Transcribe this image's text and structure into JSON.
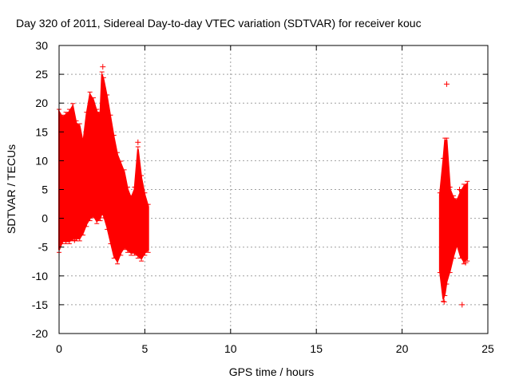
{
  "chart_data": {
    "type": "scatter",
    "title": "Day 320 of 2011, Sidereal Day-to-day VTEC variation (SDTVAR) for receiver kouc",
    "xlabel": "GPS time / hours",
    "ylabel": "SDTVAR / TECUs",
    "xlim": [
      0,
      25
    ],
    "ylim": [
      -20,
      30
    ],
    "xticks": [
      0,
      5,
      10,
      15,
      20,
      25
    ],
    "yticks": [
      -20,
      -15,
      -10,
      -5,
      0,
      5,
      10,
      15,
      20,
      25,
      30
    ],
    "grid": true,
    "series": [
      {
        "name": "SDTVAR",
        "color": "#ff0000",
        "marker": "plus",
        "with_error_bars": true,
        "bands": [
          {
            "x": 0.0,
            "lo": -5.5,
            "hi": 18.5
          },
          {
            "x": 0.2,
            "lo": -4.0,
            "hi": 17.5
          },
          {
            "x": 0.4,
            "lo": -4.0,
            "hi": 18.0
          },
          {
            "x": 0.6,
            "lo": -4.0,
            "hi": 18.5
          },
          {
            "x": 0.8,
            "lo": -3.5,
            "hi": 19.5
          },
          {
            "x": 1.0,
            "lo": -3.5,
            "hi": 16.5
          },
          {
            "x": 1.2,
            "lo": -3.5,
            "hi": 16.0
          },
          {
            "x": 1.4,
            "lo": -2.5,
            "hi": 13.0
          },
          {
            "x": 1.6,
            "lo": -1.0,
            "hi": 18.0
          },
          {
            "x": 1.8,
            "lo": 0.0,
            "hi": 21.5
          },
          {
            "x": 2.0,
            "lo": 0.5,
            "hi": 20.5
          },
          {
            "x": 2.2,
            "lo": -0.5,
            "hi": 18.5
          },
          {
            "x": 2.4,
            "lo": 0.0,
            "hi": 18.0
          },
          {
            "x": 2.5,
            "lo": 1.0,
            "hi": 25.0
          },
          {
            "x": 2.6,
            "lo": 0.5,
            "hi": 24.0
          },
          {
            "x": 2.8,
            "lo": -1.5,
            "hi": 21.0
          },
          {
            "x": 3.0,
            "lo": -4.0,
            "hi": 17.5
          },
          {
            "x": 3.2,
            "lo": -6.5,
            "hi": 14.0
          },
          {
            "x": 3.4,
            "lo": -7.5,
            "hi": 11.0
          },
          {
            "x": 3.6,
            "lo": -6.0,
            "hi": 9.5
          },
          {
            "x": 3.8,
            "lo": -5.0,
            "hi": 8.0
          },
          {
            "x": 4.0,
            "lo": -5.5,
            "hi": 5.0
          },
          {
            "x": 4.2,
            "lo": -6.0,
            "hi": 3.5
          },
          {
            "x": 4.4,
            "lo": -6.0,
            "hi": 5.0
          },
          {
            "x": 4.6,
            "lo": -6.5,
            "hi": 12.0
          },
          {
            "x": 4.8,
            "lo": -7.0,
            "hi": 7.0
          },
          {
            "x": 5.0,
            "lo": -6.0,
            "hi": 4.0
          },
          {
            "x": 5.2,
            "lo": -5.5,
            "hi": 2.0
          },
          {
            "x": 22.2,
            "lo": -9.0,
            "hi": 4.0
          },
          {
            "x": 22.4,
            "lo": -14.0,
            "hi": 10.0
          },
          {
            "x": 22.5,
            "lo": -13.0,
            "hi": 13.5
          },
          {
            "x": 22.6,
            "lo": -11.0,
            "hi": 13.5
          },
          {
            "x": 22.8,
            "lo": -9.0,
            "hi": 5.0
          },
          {
            "x": 23.0,
            "lo": -6.5,
            "hi": 3.5
          },
          {
            "x": 23.2,
            "lo": -4.5,
            "hi": 3.0
          },
          {
            "x": 23.4,
            "lo": -6.5,
            "hi": 4.5
          },
          {
            "x": 23.6,
            "lo": -7.5,
            "hi": 5.5
          },
          {
            "x": 23.8,
            "lo": -7.0,
            "hi": 6.0
          }
        ],
        "outliers": [
          {
            "x": 0.9,
            "y": -3.8
          },
          {
            "x": 2.55,
            "y": 26.3
          },
          {
            "x": 4.6,
            "y": 13.2
          },
          {
            "x": 22.45,
            "y": -14.5
          },
          {
            "x": 22.6,
            "y": 23.3
          },
          {
            "x": 23.5,
            "y": -15.0
          },
          {
            "x": 23.7,
            "y": -7.7
          },
          {
            "x": 23.35,
            "y": 5.0
          }
        ]
      }
    ]
  }
}
